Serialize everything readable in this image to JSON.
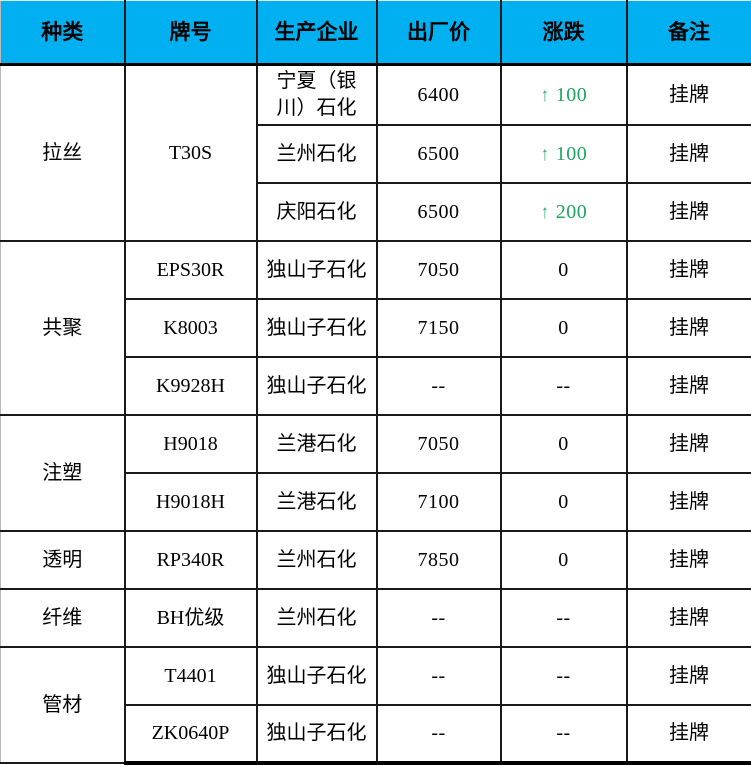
{
  "table": {
    "columns": [
      {
        "key": "category",
        "label": "种类"
      },
      {
        "key": "grade",
        "label": "牌号"
      },
      {
        "key": "producer",
        "label": "生产企业"
      },
      {
        "key": "price",
        "label": "出厂价"
      },
      {
        "key": "change",
        "label": "涨跌"
      },
      {
        "key": "note",
        "label": "备注"
      }
    ],
    "up_arrow": "↑",
    "colors": {
      "header_bg": "#00b0f0",
      "up_green": "#1fa361",
      "text": "#000000"
    },
    "groups": [
      {
        "category": "拉丝",
        "grade_merged": "T30S",
        "rows": [
          {
            "producer": "宁夏（银川）石化",
            "price": "6400",
            "change": "100",
            "change_dir": "up",
            "note": "挂牌"
          },
          {
            "producer": "兰州石化",
            "price": "6500",
            "change": "100",
            "change_dir": "up",
            "note": "挂牌"
          },
          {
            "producer": "庆阳石化",
            "price": "6500",
            "change": "200",
            "change_dir": "up",
            "note": "挂牌"
          }
        ]
      },
      {
        "category": "共聚",
        "rows": [
          {
            "grade": "EPS30R",
            "producer": "独山子石化",
            "price": "7050",
            "change": "0",
            "change_dir": "flat",
            "note": "挂牌"
          },
          {
            "grade": "K8003",
            "producer": "独山子石化",
            "price": "7150",
            "change": "0",
            "change_dir": "flat",
            "note": "挂牌"
          },
          {
            "grade": "K9928H",
            "producer": "独山子石化",
            "price": "--",
            "change": "--",
            "change_dir": "flat",
            "note": "挂牌"
          }
        ]
      },
      {
        "category": "注塑",
        "rows": [
          {
            "grade": "H9018",
            "producer": "兰港石化",
            "price": "7050",
            "change": "0",
            "change_dir": "flat",
            "note": "挂牌"
          },
          {
            "grade": "H9018H",
            "producer": "兰港石化",
            "price": "7100",
            "change": "0",
            "change_dir": "flat",
            "note": "挂牌"
          }
        ]
      },
      {
        "category": "透明",
        "rows": [
          {
            "grade": "RP340R",
            "producer": "兰州石化",
            "price": "7850",
            "change": "0",
            "change_dir": "flat",
            "note": "挂牌"
          }
        ]
      },
      {
        "category": "纤维",
        "rows": [
          {
            "grade": "BH优级",
            "producer": "兰州石化",
            "price": "--",
            "change": "--",
            "change_dir": "flat",
            "note": "挂牌"
          }
        ]
      },
      {
        "category": "管材",
        "rows": [
          {
            "grade": "T4401",
            "producer": "独山子石化",
            "price": "--",
            "change": "--",
            "change_dir": "flat",
            "note": "挂牌"
          },
          {
            "grade": "ZK0640P",
            "producer": "独山子石化",
            "price": "--",
            "change": "--",
            "change_dir": "flat",
            "note": "挂牌"
          }
        ]
      }
    ]
  }
}
